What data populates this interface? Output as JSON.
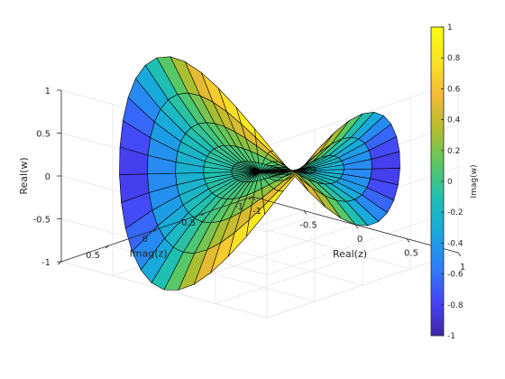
{
  "chart_data": {
    "type": "surface",
    "surface_function": "w = z^2 (z = r·e^{iθ}, r in [0,1])",
    "grid": {
      "r": [
        0,
        0.2,
        0.4,
        0.6,
        0.8,
        1
      ],
      "theta_steps": 48
    },
    "axes": {
      "x": {
        "label": "Real(z)",
        "lim": [
          -1,
          1
        ],
        "ticks": [
          -1,
          -0.5,
          0,
          0.5,
          1
        ],
        "tick_labels": [
          "-1",
          "-0.5",
          "0",
          "0.5",
          "1"
        ]
      },
      "y": {
        "label": "Imag(z)",
        "lim": [
          -1,
          1
        ],
        "ticks": [
          -1,
          -0.5,
          0,
          0.5,
          1
        ],
        "tick_labels": [
          "-1",
          "-0.5",
          "0",
          "0.5",
          ""
        ]
      },
      "z": {
        "label": "Real(w)",
        "lim": [
          -1,
          1
        ],
        "ticks": [
          -1,
          -0.5,
          0,
          0.5,
          1
        ],
        "tick_labels": [
          "-1",
          "-0.5",
          "0",
          "0.5",
          "1"
        ]
      }
    },
    "colorbar": {
      "label": "Imag(w)",
      "lim": [
        -1,
        1
      ],
      "ticks": [
        -1,
        -0.8,
        -0.6,
        -0.4,
        -0.2,
        0,
        0.2,
        0.4,
        0.6,
        0.8,
        1
      ],
      "tick_labels": [
        "-1",
        "-0.8",
        "-0.6",
        "-0.4",
        "-0.2",
        "0",
        "0.2",
        "0.4",
        "0.6",
        "0.8",
        "1"
      ],
      "colormap": "parula"
    },
    "view": {
      "azimuth_deg": -37.5,
      "elevation_deg": 30
    },
    "grid_on": true,
    "box": "3d-box-back-planes"
  },
  "colors": {
    "parula": [
      "#3e26a8",
      "#4743f8",
      "#2d7ff9",
      "#18a8e0",
      "#1ec0b4",
      "#59c864",
      "#b3bd2c",
      "#f5b936",
      "#f9e426",
      "#f9fb0e"
    ],
    "grid": "#e6e6e6",
    "axis": "#262626",
    "edge": "#000000"
  }
}
